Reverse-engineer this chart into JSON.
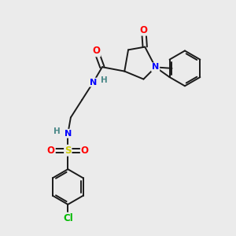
{
  "background_color": "#ebebeb",
  "bond_color": "#1a1a1a",
  "atom_colors": {
    "O": "#ff0000",
    "N": "#0000ff",
    "S": "#cccc00",
    "Cl": "#00bb00",
    "C": "#1a1a1a",
    "H": "#4a8888"
  },
  "figsize": [
    3.0,
    3.0
  ],
  "dpi": 100
}
